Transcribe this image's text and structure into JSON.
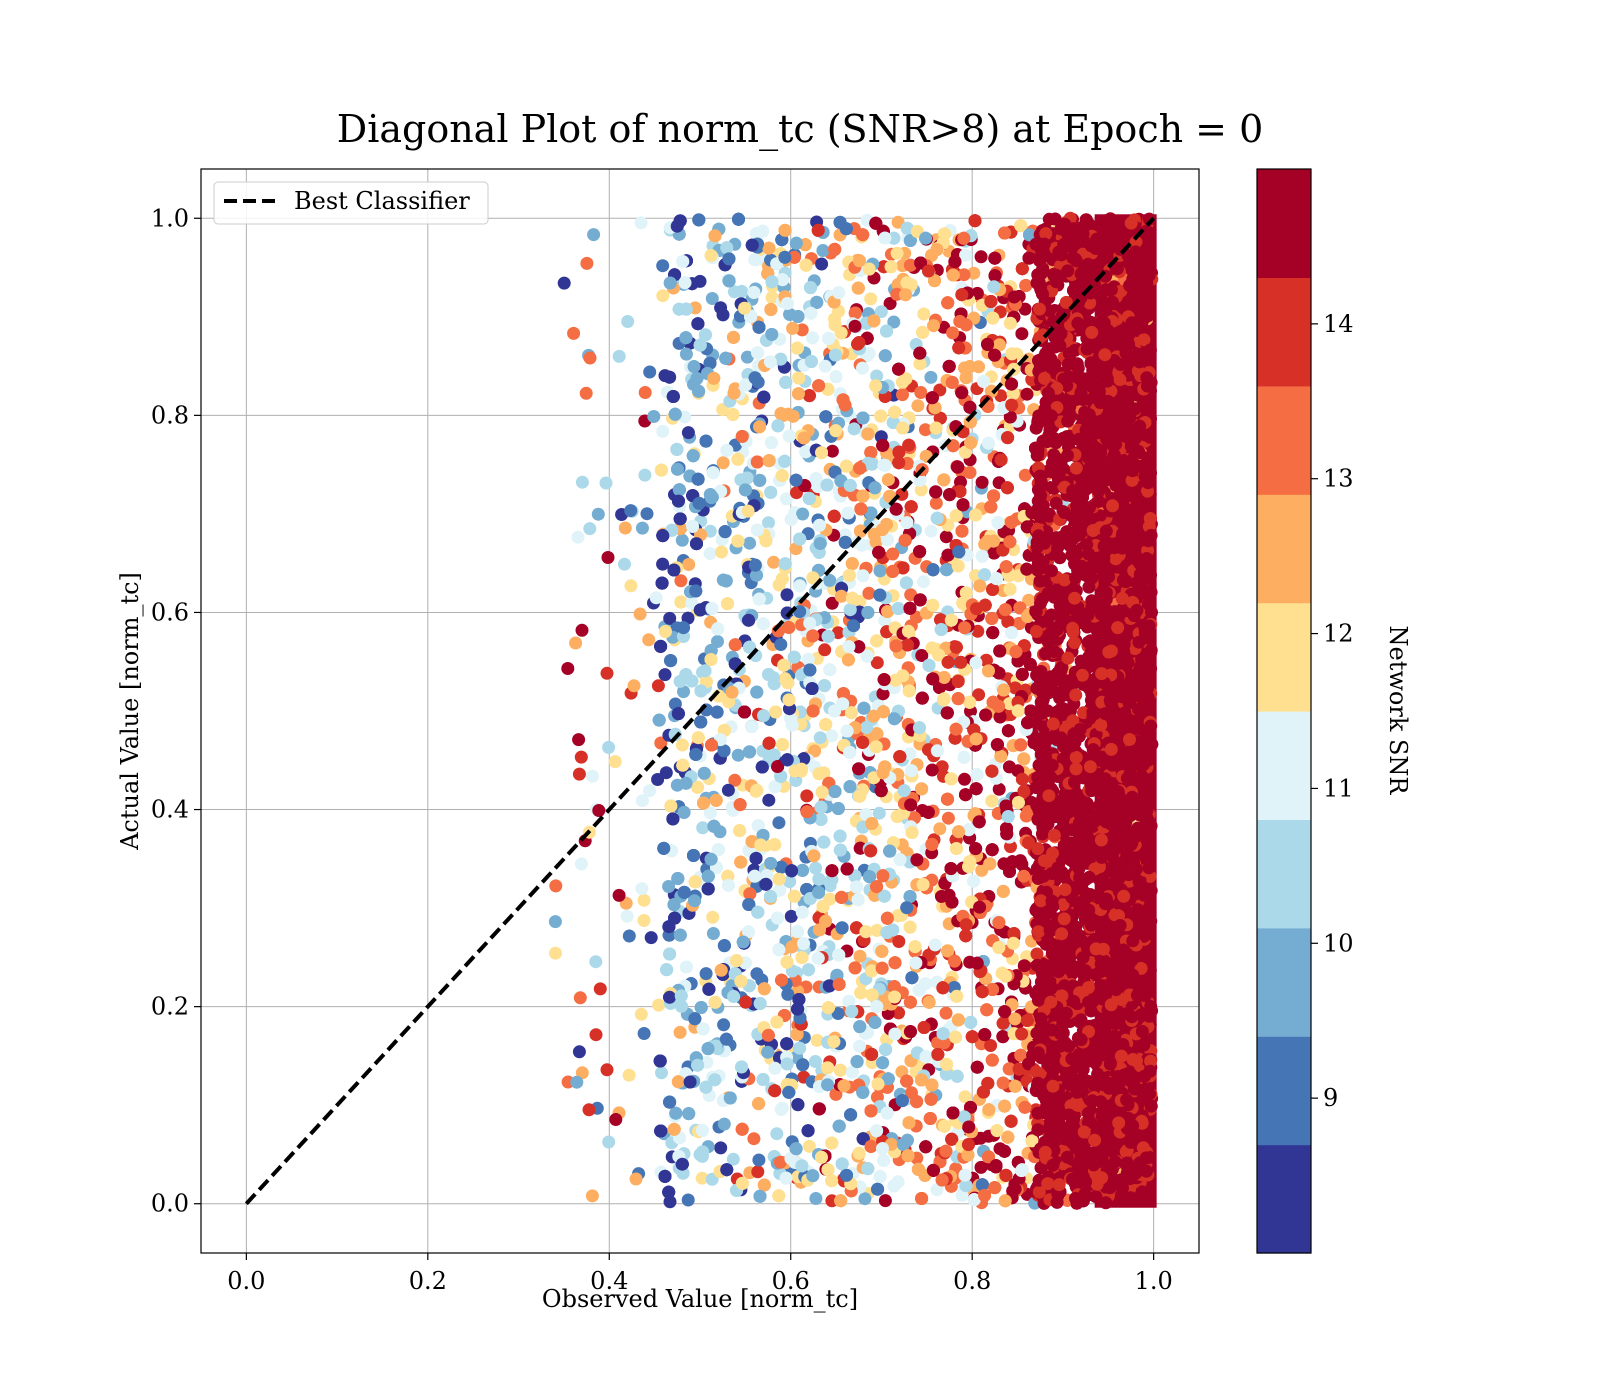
{
  "chart_data": {
    "type": "scatter",
    "title": "Diagonal Plot of norm_tc (SNR>8) at Epoch = 0",
    "xlabel": "Observed Value [norm_tc]",
    "ylabel": "Actual Value [norm_tc]",
    "xlim": [
      -0.05,
      1.05
    ],
    "ylim": [
      -0.05,
      1.05
    ],
    "x_ticks": [
      "0.0",
      "0.2",
      "0.4",
      "0.6",
      "0.8",
      "1.0"
    ],
    "y_ticks": [
      "0.0",
      "0.2",
      "0.4",
      "0.6",
      "0.8",
      "1.0"
    ],
    "grid": true,
    "legend": {
      "placement": "upper-left",
      "entries": [
        {
          "label": "Best Classifier",
          "style": "black dashed line"
        }
      ]
    },
    "reference_line": {
      "name": "Best Classifier",
      "x": [
        0.0,
        1.0
      ],
      "y": [
        0.0,
        1.0
      ],
      "color": "#000000"
    },
    "colorbar": {
      "label": "Network SNR",
      "range": [
        8,
        15
      ],
      "ticks": [
        "9",
        "10",
        "11",
        "12",
        "13",
        "14"
      ],
      "tick_values": [
        9,
        10,
        11,
        12,
        13,
        14
      ],
      "colormap": "RdYlBu_r",
      "colors": [
        "#313695",
        "#4575b4",
        "#74add1",
        "#abd9e9",
        "#e0f3f8",
        "#fee090",
        "#fdae61",
        "#f46d43",
        "#d73027",
        "#a50026"
      ]
    },
    "scatter_description": {
      "x_range_observed": [
        0.34,
        1.0
      ],
      "y_range": [
        0.0,
        1.0
      ],
      "dense_region_x": [
        0.45,
        1.0
      ],
      "high_snr_band_x": [
        0.87,
        1.0
      ],
      "pattern": "SNR increases with observed value; x values near 1.0 are dominated by SNR > 14"
    }
  }
}
